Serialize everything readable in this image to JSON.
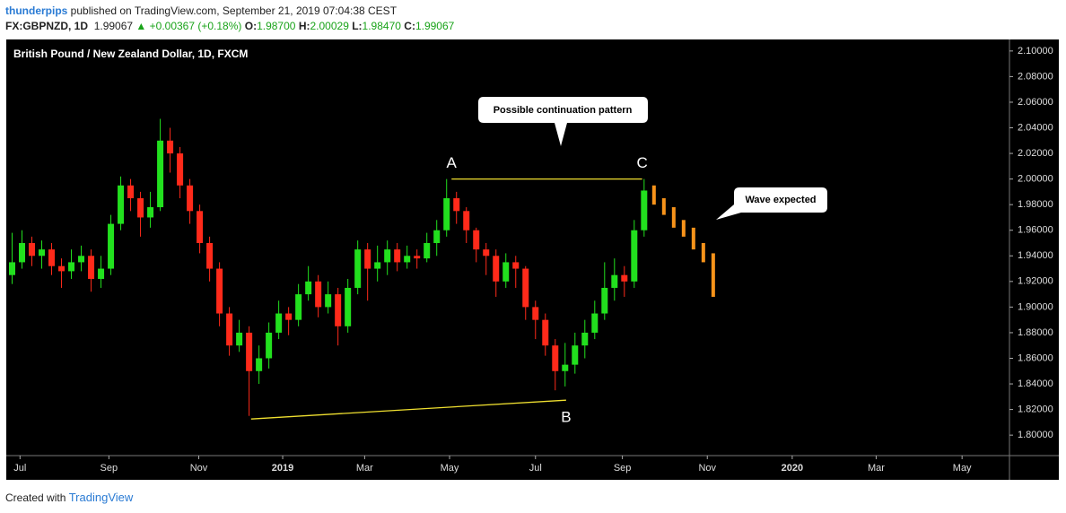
{
  "header": {
    "author": "thunderpips",
    "published": "published on TradingView.com, September 21, 2019 07:04:38 CEST",
    "symbol": "FX:GBPNZD, 1D",
    "last": "1.99067",
    "change": "▲ +0.00367 (+0.18%)",
    "open_label": "O:",
    "open": "1.98700",
    "high_label": "H:",
    "high": "2.00029",
    "low_label": "L:",
    "low": "1.98470",
    "close_label": "C:",
    "close": "1.99067"
  },
  "footer": {
    "created": "Created with",
    "brand": "TradingView"
  },
  "chart_data": {
    "type": "candlestick",
    "title": "British Pound / New Zealand Dollar, 1D, FXCM",
    "up_color": "#22e01e",
    "down_color": "#ff2a1a",
    "open": [
      1.925,
      1.935,
      1.95,
      1.94,
      1.945,
      1.932,
      1.928,
      1.935,
      1.94,
      1.922,
      1.93,
      1.965,
      1.995,
      1.985,
      1.97,
      1.978,
      2.03,
      2.02,
      1.995,
      1.975,
      1.95,
      1.93,
      1.895,
      1.87,
      1.88,
      1.85,
      1.86,
      1.88,
      1.895,
      1.89,
      1.91,
      1.92,
      1.9,
      1.91,
      1.885,
      1.915,
      1.945,
      1.93,
      1.935,
      1.945,
      1.935,
      1.94,
      1.938,
      1.95,
      1.96,
      1.985,
      1.975,
      1.96,
      1.945,
      1.94,
      1.92,
      1.935,
      1.93,
      1.9,
      1.89,
      1.87,
      1.85,
      1.855,
      1.87,
      1.88,
      1.895,
      1.915,
      1.925,
      1.92,
      1.96
    ],
    "high": [
      1.958,
      1.96,
      1.955,
      1.952,
      1.95,
      1.938,
      1.945,
      1.948,
      1.945,
      1.94,
      1.972,
      2.002,
      2.0,
      1.99,
      1.99,
      2.047,
      2.04,
      2.025,
      2.0,
      1.98,
      1.955,
      1.935,
      1.9,
      1.89,
      1.885,
      1.87,
      1.888,
      1.905,
      1.9,
      1.918,
      1.932,
      1.925,
      1.92,
      1.915,
      1.922,
      1.952,
      1.95,
      1.948,
      1.952,
      1.95,
      1.948,
      1.945,
      1.958,
      1.968,
      2.0,
      1.99,
      1.978,
      1.962,
      1.95,
      1.945,
      1.942,
      1.94,
      1.932,
      1.905,
      1.895,
      1.875,
      1.872,
      1.88,
      1.89,
      1.905,
      1.935,
      1.938,
      1.932,
      1.968,
      2.0
    ],
    "low": [
      1.918,
      1.93,
      1.932,
      1.93,
      1.925,
      1.915,
      1.922,
      1.928,
      1.912,
      1.915,
      1.925,
      1.96,
      1.975,
      1.955,
      1.962,
      1.975,
      2.005,
      1.985,
      1.965,
      1.942,
      1.92,
      1.885,
      1.862,
      1.865,
      1.815,
      1.84,
      1.852,
      1.875,
      1.878,
      1.885,
      1.905,
      1.892,
      1.895,
      1.87,
      1.88,
      1.91,
      1.905,
      1.92,
      1.925,
      1.928,
      1.93,
      1.93,
      1.935,
      1.94,
      1.955,
      1.965,
      1.95,
      1.935,
      1.925,
      1.908,
      1.915,
      1.915,
      1.89,
      1.875,
      1.862,
      1.835,
      1.838,
      1.848,
      1.86,
      1.875,
      1.89,
      1.905,
      1.908,
      1.915,
      1.955
    ],
    "close": [
      1.935,
      1.95,
      1.94,
      1.945,
      1.932,
      1.928,
      1.935,
      1.94,
      1.922,
      1.93,
      1.965,
      1.995,
      1.985,
      1.97,
      1.978,
      2.03,
      2.02,
      1.995,
      1.975,
      1.95,
      1.93,
      1.895,
      1.87,
      1.88,
      1.85,
      1.86,
      1.88,
      1.895,
      1.89,
      1.91,
      1.92,
      1.9,
      1.91,
      1.885,
      1.915,
      1.945,
      1.93,
      1.935,
      1.945,
      1.935,
      1.94,
      1.938,
      1.95,
      1.96,
      1.985,
      1.975,
      1.96,
      1.945,
      1.94,
      1.92,
      1.935,
      1.93,
      1.9,
      1.89,
      1.87,
      1.85,
      1.855,
      1.87,
      1.88,
      1.895,
      1.915,
      1.925,
      1.92,
      1.96,
      1.991
    ],
    "projection": {
      "color": "#f7931a",
      "open": [
        1.995,
        1.985,
        1.978,
        1.968,
        1.962,
        1.95,
        1.942
      ],
      "close": [
        1.98,
        1.972,
        1.962,
        1.955,
        1.945,
        1.935,
        1.908
      ]
    },
    "lines": [
      {
        "color": "#f0e030",
        "points": [
          [
            44.5,
            2.0
          ],
          [
            63.8,
            2.0
          ]
        ]
      },
      {
        "color": "#f0e030",
        "points": [
          [
            24.2,
            1.8126
          ],
          [
            56.1,
            1.8273
          ]
        ]
      }
    ],
    "point_labels": [
      {
        "text": "A",
        "at": [
          44.5,
          2.0
        ]
      },
      {
        "text": "B",
        "at": [
          56.1,
          1.8273
        ]
      },
      {
        "text": "C",
        "at": [
          63.8,
          2.0
        ]
      }
    ],
    "callouts": [
      "Possible continuation pattern",
      "Wave expected"
    ],
    "xlim": [
      -0.5,
      101
    ],
    "xticks": [
      {
        "value": 0.8,
        "label": "Jul"
      },
      {
        "value": 9.8,
        "label": "Sep"
      },
      {
        "value": 18.9,
        "label": "Nov"
      },
      {
        "value": 27.4,
        "label": "2019"
      },
      {
        "value": 35.7,
        "label": "Mar"
      },
      {
        "value": 44.3,
        "label": "May"
      },
      {
        "value": 53,
        "label": "Jul"
      },
      {
        "value": 61.8,
        "label": "Sep"
      },
      {
        "value": 70.4,
        "label": "Nov"
      },
      {
        "value": 79,
        "label": "2020"
      },
      {
        "value": 87.5,
        "label": "Mar"
      },
      {
        "value": 96.2,
        "label": "May"
      }
    ],
    "ylim": [
      1.784,
      2.109
    ],
    "yticks": [
      {
        "value": 1.8,
        "label": "1.80000"
      },
      {
        "value": 1.82,
        "label": "1.82000"
      },
      {
        "value": 1.84,
        "label": "1.84000"
      },
      {
        "value": 1.86,
        "label": "1.86000"
      },
      {
        "value": 1.88,
        "label": "1.88000"
      },
      {
        "value": 1.9,
        "label": "1.90000"
      },
      {
        "value": 1.92,
        "label": "1.92000"
      },
      {
        "value": 1.94,
        "label": "1.94000"
      },
      {
        "value": 1.96,
        "label": "1.96000"
      },
      {
        "value": 1.98,
        "label": "1.98000"
      },
      {
        "value": 2.0,
        "label": "2.00000"
      },
      {
        "value": 2.02,
        "label": "2.02000"
      },
      {
        "value": 2.04,
        "label": "2.04000"
      },
      {
        "value": 2.06,
        "label": "2.06000"
      },
      {
        "value": 2.08,
        "label": "2.08000"
      },
      {
        "value": 2.1,
        "label": "2.10000"
      }
    ]
  }
}
